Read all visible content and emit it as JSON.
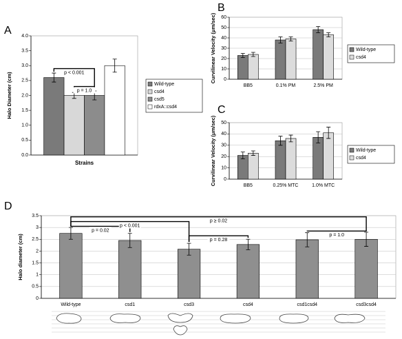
{
  "chart_data": [
    {
      "type": "bar",
      "panel_label": "A",
      "y_label": "Halo Diameter (cm)",
      "x_label": "Strains",
      "categories": [
        null
      ],
      "series": [
        {
          "name": "Wild-type",
          "color": "#7a7a7a",
          "values": [
            2.6
          ],
          "errors": [
            0.15
          ]
        },
        {
          "name": "csd4",
          "color": "#d8d8d8",
          "values": [
            2.0
          ],
          "errors": [
            0.1
          ]
        },
        {
          "name": "csd5",
          "color": "#8c8c8c",
          "values": [
            2.0
          ],
          "errors": [
            0.15
          ]
        },
        {
          "name": "rdxA::csd4",
          "color": "#ffffff",
          "values": [
            3.0
          ],
          "errors": [
            0.22
          ]
        }
      ],
      "ylim": [
        0,
        4
      ],
      "yticks": [
        {
          "value": 0,
          "label": "0.0"
        },
        0.5,
        {
          "value": 1,
          "label": "1.0"
        },
        1.5,
        {
          "value": 2,
          "label": "2.0"
        },
        2.5,
        {
          "value": 3,
          "label": "3.0"
        },
        3.5,
        {
          "value": 4,
          "label": "4.0"
        }
      ],
      "grid": false,
      "annotations": [
        "p < 0.001",
        "p = 1.0"
      ]
    },
    {
      "type": "bar",
      "panel_label": "B",
      "y_label": "Curvilinear Velocity (μm/sec)",
      "categories": [
        "BB5",
        "0.1% PM",
        "2.5% PM"
      ],
      "series": [
        {
          "name": "Wild-type",
          "color": "#7a7a7a",
          "values": [
            23,
            38,
            48
          ],
          "errors": [
            2,
            3,
            3
          ]
        },
        {
          "name": "csd4",
          "color": "#dcdcdc",
          "values": [
            24,
            39,
            43
          ],
          "errors": [
            2,
            2,
            2
          ]
        }
      ],
      "ylim": [
        0,
        60
      ],
      "yticks": [
        0,
        10,
        20,
        30,
        40,
        50,
        60
      ],
      "grid": true
    },
    {
      "type": "bar",
      "panel_label": "C",
      "y_label": "Curvilinear Velocity (μm/sec)",
      "categories": [
        "BB5",
        "0.25% MTC",
        "1.0% MTC"
      ],
      "series": [
        {
          "name": "Wild-type",
          "color": "#7a7a7a",
          "values": [
            21,
            34,
            37
          ],
          "errors": [
            3,
            4,
            5
          ]
        },
        {
          "name": "csd4",
          "color": "#dcdcdc",
          "values": [
            23,
            36,
            41
          ],
          "errors": [
            2,
            3,
            5
          ]
        }
      ],
      "ylim": [
        0,
        50
      ],
      "yticks": [
        0,
        10,
        20,
        30,
        40,
        50
      ],
      "grid": true
    },
    {
      "type": "bar",
      "panel_label": "D",
      "y_label": "Halo diameter (cm)",
      "categories": [
        "Wild-type",
        "csd1",
        "csd3",
        "csd4",
        "csd1csd4",
        "csd3csd4"
      ],
      "values": [
        2.75,
        2.45,
        2.08,
        2.28,
        2.48,
        2.5
      ],
      "errors": [
        0.25,
        0.3,
        0.25,
        0.22,
        0.3,
        0.3
      ],
      "color": "#8f8f8f",
      "ylim": [
        0,
        3.5
      ],
      "yticks": [
        0,
        0.5,
        1,
        1.5,
        2,
        2.5,
        3,
        3.5
      ],
      "grid": true,
      "annotations": [
        "p = 0.02",
        "p < 0.001",
        "p = 0.28",
        "p ≥ 0.02",
        "p = 1.0"
      ]
    }
  ]
}
